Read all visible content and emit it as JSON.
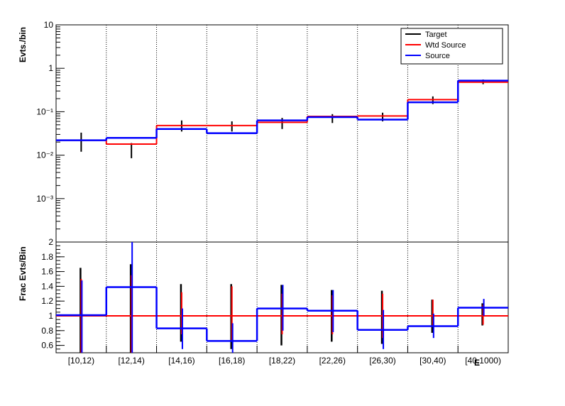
{
  "chart_data": [
    {
      "type": "line",
      "panel": "top",
      "scale": "log",
      "ylabel": "Evts./bin",
      "ylim": [
        0.0001,
        10
      ],
      "y_ticks": [
        {
          "label": "10",
          "value": 10
        },
        {
          "label": "1",
          "value": 1
        },
        {
          "label": "10⁻¹",
          "value": 0.1
        },
        {
          "label": "10⁻²",
          "value": 0.01
        },
        {
          "label": "10⁻³",
          "value": 0.001
        }
      ],
      "categories": [
        "[10,12)",
        "[12,14)",
        "[14,16)",
        "[16,18)",
        "[18,22)",
        "[22,26)",
        "[26,30)",
        "[30,40)",
        "[40,1000)"
      ],
      "legend": {
        "position": "top-right",
        "entries": [
          "Target",
          "Wtd Source",
          "Source"
        ]
      },
      "series": [
        {
          "name": "Target",
          "color": "#000000",
          "style": "points-with-errors",
          "values": [
            0.022,
            0.0135,
            0.047,
            0.045,
            0.052,
            0.07,
            0.075,
            0.175,
            0.49
          ],
          "err_low": [
            0.012,
            0.0085,
            0.035,
            0.035,
            0.04,
            0.055,
            0.06,
            0.15,
            0.43
          ],
          "err_high": [
            0.033,
            0.019,
            0.063,
            0.06,
            0.072,
            0.088,
            0.095,
            0.225,
            0.55
          ]
        },
        {
          "name": "Wtd Source",
          "color": "#ff0000",
          "style": "step",
          "values": [
            0.022,
            0.018,
            0.048,
            0.048,
            0.057,
            0.078,
            0.08,
            0.19,
            0.48
          ]
        },
        {
          "name": "Source",
          "color": "#0000ff",
          "style": "step",
          "values": [
            0.022,
            0.025,
            0.04,
            0.032,
            0.063,
            0.075,
            0.066,
            0.165,
            0.52
          ]
        }
      ]
    },
    {
      "type": "line",
      "panel": "bottom",
      "ylabel": "Frac Evts/Bin",
      "ylim": [
        0.5,
        2.0
      ],
      "y_ticks": [
        {
          "label": "0.6",
          "value": 0.6
        },
        {
          "label": "0.8",
          "value": 0.8
        },
        {
          "label": "1",
          "value": 1.0
        },
        {
          "label": "1.2",
          "value": 1.2
        },
        {
          "label": "1.4",
          "value": 1.4
        },
        {
          "label": "1.6",
          "value": 1.6
        },
        {
          "label": "1.8",
          "value": 1.8
        },
        {
          "label": "2",
          "value": 2.0
        }
      ],
      "categories": [
        "[10,12)",
        "[12,14)",
        "[14,16)",
        "[16,18)",
        "[18,22)",
        "[22,26)",
        "[26,30)",
        "[30,40)",
        "[40,1000)"
      ],
      "xlabel": "E",
      "series": [
        {
          "name": "Target",
          "color": "#000000",
          "style": "errors",
          "values": [
            1.0,
            1.0,
            1.0,
            1.0,
            1.0,
            1.0,
            1.0,
            1.0,
            1.0
          ],
          "err_low": [
            0.5,
            0.5,
            0.65,
            0.55,
            0.6,
            0.65,
            0.62,
            0.77,
            0.87
          ],
          "err_high": [
            1.65,
            1.7,
            1.43,
            1.43,
            1.42,
            1.35,
            1.34,
            1.22,
            1.17
          ]
        },
        {
          "name": "Wtd Source",
          "color": "#ff0000",
          "style": "step",
          "values": [
            1.0,
            1.0,
            1.0,
            1.0,
            1.0,
            1.0,
            1.0,
            1.0,
            1.0
          ],
          "err_low": [
            0.5,
            0.5,
            0.75,
            0.65,
            0.75,
            0.75,
            0.7,
            0.85,
            0.88
          ],
          "err_high": [
            1.5,
            1.55,
            1.32,
            1.4,
            1.3,
            1.28,
            1.3,
            1.22,
            1.15
          ]
        },
        {
          "name": "Source",
          "color": "#0000ff",
          "style": "step",
          "values": [
            1.01,
            1.39,
            0.83,
            0.66,
            1.1,
            1.07,
            0.81,
            0.86,
            1.11
          ],
          "err_low": [
            0.5,
            0.5,
            0.55,
            0.5,
            0.8,
            0.78,
            0.55,
            0.7,
            1.0
          ],
          "err_high": [
            1.48,
            2.0,
            1.1,
            0.9,
            1.42,
            1.35,
            1.08,
            1.03,
            1.23
          ]
        }
      ]
    }
  ]
}
